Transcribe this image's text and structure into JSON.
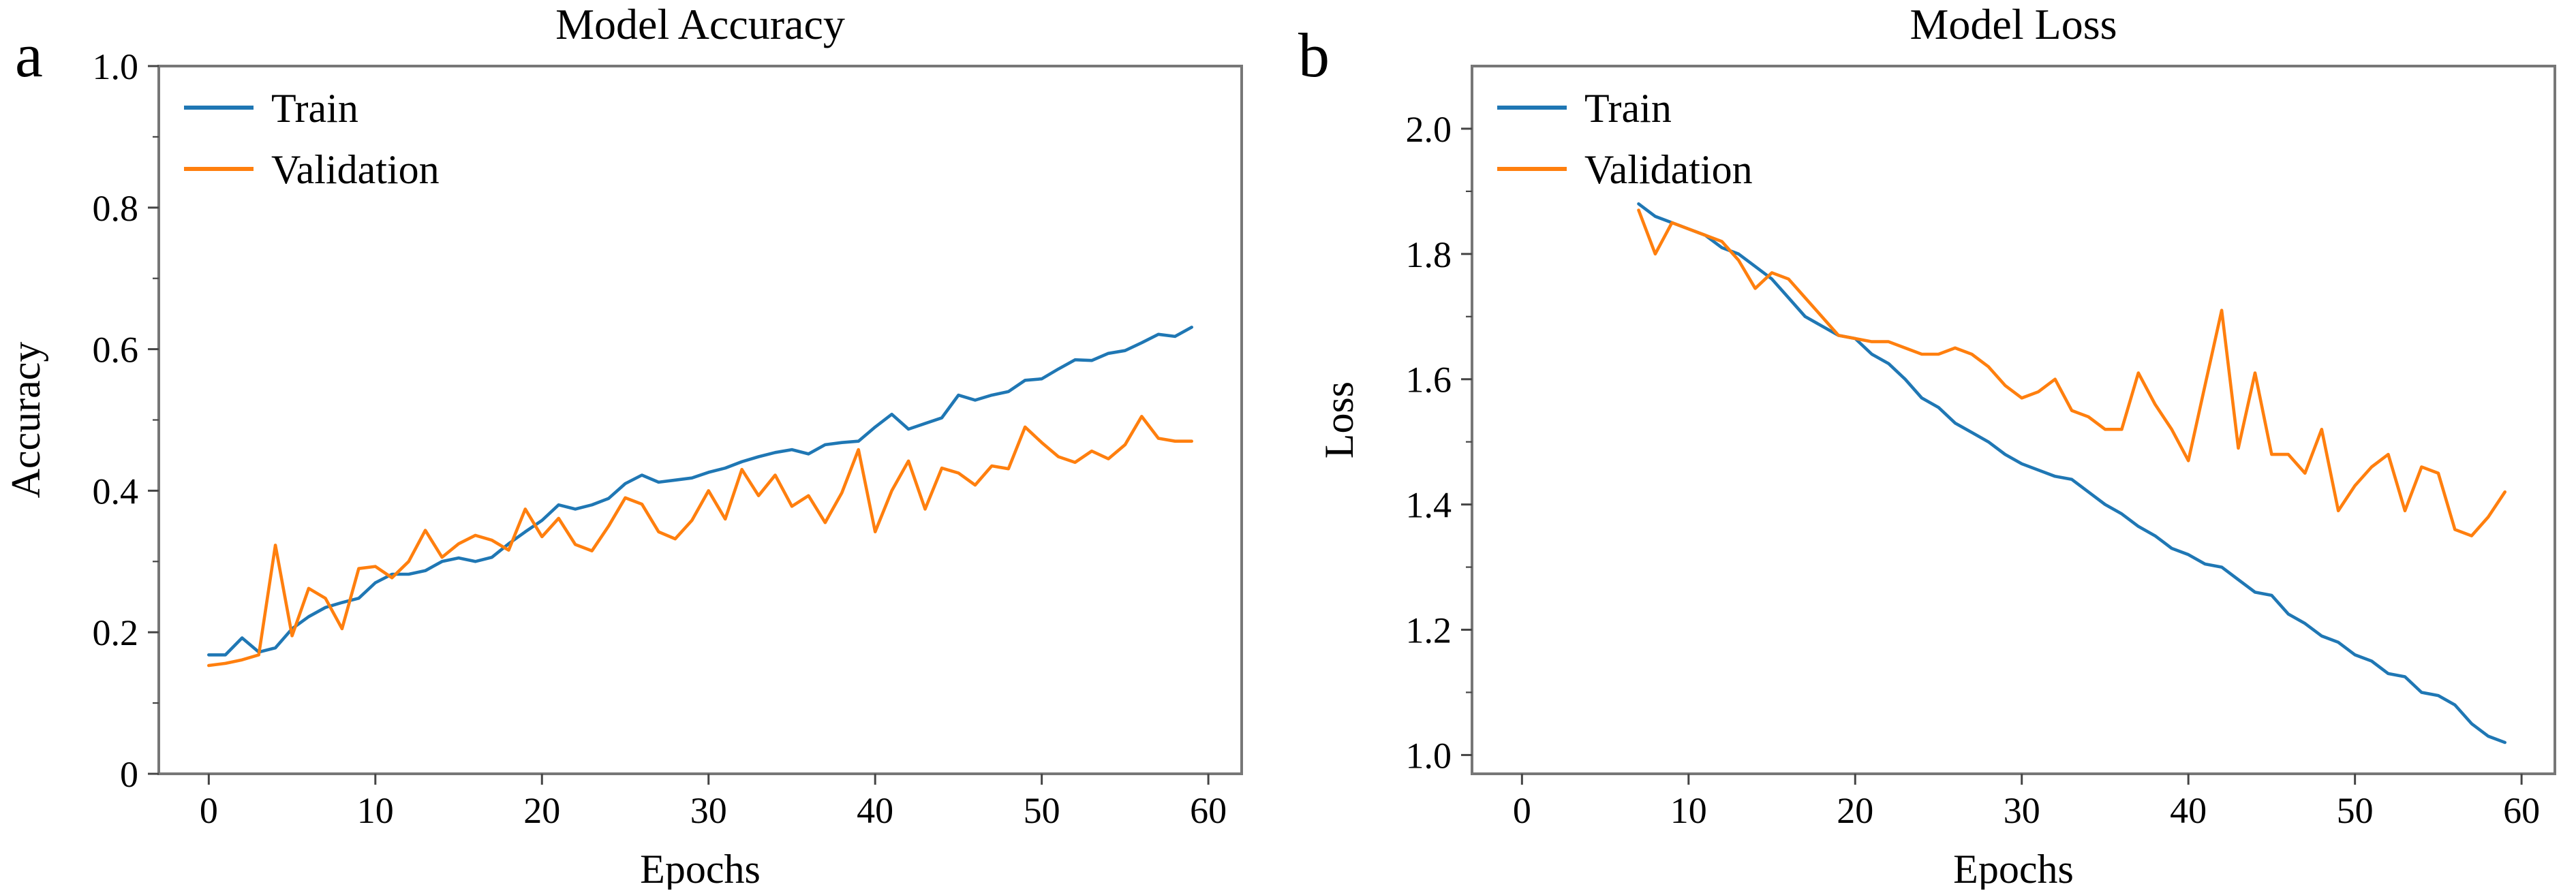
{
  "figure": {
    "background": "#ffffff",
    "panels": [
      {
        "panel_label": "a",
        "title": "Model Accuracy",
        "xlabel": "Epochs",
        "ylabel": "Accuracy",
        "legend": {
          "position": "upper left",
          "items": [
            {
              "label": "Train",
              "color": "#1f77b4"
            },
            {
              "label": "Validation",
              "color": "#ff7f0e"
            }
          ]
        }
      },
      {
        "panel_label": "b",
        "title": "Model Loss",
        "xlabel": "Epochs",
        "ylabel": "Loss",
        "legend": {
          "position": "upper left",
          "items": [
            {
              "label": "Train",
              "color": "#1f77b4"
            },
            {
              "label": "Validation",
              "color": "#ff7f0e"
            }
          ]
        }
      }
    ],
    "colors": {
      "train": "#1f77b4",
      "validation": "#ff7f0e",
      "spine": "#777777",
      "tick": "#444444",
      "text": "#000000"
    }
  },
  "chart_data": [
    {
      "type": "line",
      "title": "Model Accuracy",
      "xlabel": "Epochs",
      "ylabel": "Accuracy",
      "xlim": [
        -3,
        62
      ],
      "ylim": [
        0,
        1.0
      ],
      "grid": false,
      "legend_position": "upper left",
      "xticks": [
        0,
        10,
        20,
        30,
        40,
        50,
        60
      ],
      "yticks": [
        {
          "v": 0.0,
          "label": "0"
        },
        {
          "v": 0.2,
          "label": "0.2"
        },
        {
          "v": 0.4,
          "label": "0.4"
        },
        {
          "v": 0.6,
          "label": "0.6"
        },
        {
          "v": 0.8,
          "label": "0.8"
        },
        {
          "v": 1.0,
          "label": "1.0"
        }
      ],
      "yticks_minor": [
        0.1,
        0.3,
        0.5,
        0.7,
        0.9
      ],
      "series": [
        {
          "name": "Train",
          "color": "#1f77b4",
          "x_start": 0,
          "values": [
            0.168,
            0.168,
            0.192,
            0.172,
            0.178,
            0.205,
            0.222,
            0.235,
            0.242,
            0.248,
            0.27,
            0.282,
            0.282,
            0.287,
            0.3,
            0.305,
            0.3,
            0.306,
            0.325,
            0.342,
            0.358,
            0.38,
            0.374,
            0.38,
            0.389,
            0.41,
            0.422,
            0.412,
            0.415,
            0.418,
            0.426,
            0.432,
            0.441,
            0.448,
            0.454,
            0.458,
            0.452,
            0.465,
            0.468,
            0.47,
            0.49,
            0.508,
            0.487,
            0.495,
            0.503,
            0.535,
            0.528,
            0.535,
            0.54,
            0.556,
            0.558,
            0.572,
            0.585,
            0.584,
            0.594,
            0.598,
            0.609,
            0.621,
            0.618,
            0.631
          ]
        },
        {
          "name": "Validation",
          "color": "#ff7f0e",
          "x_start": 0,
          "values": [
            0.153,
            0.156,
            0.161,
            0.168,
            0.323,
            0.195,
            0.262,
            0.248,
            0.205,
            0.29,
            0.293,
            0.277,
            0.3,
            0.344,
            0.306,
            0.325,
            0.337,
            0.33,
            0.316,
            0.374,
            0.335,
            0.361,
            0.324,
            0.315,
            0.35,
            0.39,
            0.381,
            0.342,
            0.332,
            0.358,
            0.4,
            0.36,
            0.43,
            0.393,
            0.422,
            0.378,
            0.393,
            0.355,
            0.397,
            0.458,
            0.342,
            0.4,
            0.442,
            0.374,
            0.432,
            0.425,
            0.408,
            0.435,
            0.431,
            0.49,
            0.468,
            0.448,
            0.44,
            0.456,
            0.445,
            0.465,
            0.505,
            0.474,
            0.47,
            0.47
          ]
        }
      ]
    },
    {
      "type": "line",
      "title": "Model Loss",
      "xlabel": "Epochs",
      "ylabel": "Loss",
      "xlim": [
        -3,
        62
      ],
      "ylim": [
        0.97,
        2.1
      ],
      "grid": false,
      "legend_position": "upper left",
      "xticks": [
        0,
        10,
        20,
        30,
        40,
        50,
        60
      ],
      "yticks": [
        {
          "v": 1.0,
          "label": "1.0"
        },
        {
          "v": 1.2,
          "label": "1.2"
        },
        {
          "v": 1.4,
          "label": "1.4"
        },
        {
          "v": 1.6,
          "label": "1.6"
        },
        {
          "v": 1.8,
          "label": "1.8"
        },
        {
          "v": 2.0,
          "label": "2.0"
        }
      ],
      "yticks_minor": [
        1.1,
        1.3,
        1.5,
        1.7,
        1.9
      ],
      "series": [
        {
          "name": "Train",
          "color": "#1f77b4",
          "x_start": 7,
          "values": [
            1.88,
            1.86,
            1.85,
            1.84,
            1.83,
            1.81,
            1.8,
            1.78,
            1.76,
            1.73,
            1.7,
            1.685,
            1.67,
            1.665,
            1.64,
            1.625,
            1.6,
            1.57,
            1.555,
            1.53,
            1.515,
            1.5,
            1.48,
            1.465,
            1.455,
            1.445,
            1.44,
            1.42,
            1.4,
            1.385,
            1.365,
            1.35,
            1.33,
            1.32,
            1.305,
            1.3,
            1.28,
            1.26,
            1.255,
            1.225,
            1.21,
            1.19,
            1.18,
            1.16,
            1.15,
            1.13,
            1.125,
            1.1,
            1.095,
            1.08,
            1.05,
            1.03,
            1.02
          ]
        },
        {
          "name": "Validation",
          "color": "#ff7f0e",
          "x_start": 7,
          "values": [
            1.87,
            1.8,
            1.85,
            1.84,
            1.83,
            1.82,
            1.79,
            1.745,
            1.77,
            1.76,
            1.73,
            1.7,
            1.67,
            1.665,
            1.66,
            1.66,
            1.65,
            1.64,
            1.64,
            1.65,
            1.64,
            1.62,
            1.59,
            1.57,
            1.58,
            1.6,
            1.55,
            1.54,
            1.52,
            1.52,
            1.61,
            1.56,
            1.52,
            1.47,
            1.59,
            1.71,
            1.49,
            1.61,
            1.48,
            1.48,
            1.45,
            1.52,
            1.39,
            1.43,
            1.46,
            1.48,
            1.39,
            1.46,
            1.45,
            1.36,
            1.35,
            1.38,
            1.42
          ]
        }
      ]
    }
  ]
}
